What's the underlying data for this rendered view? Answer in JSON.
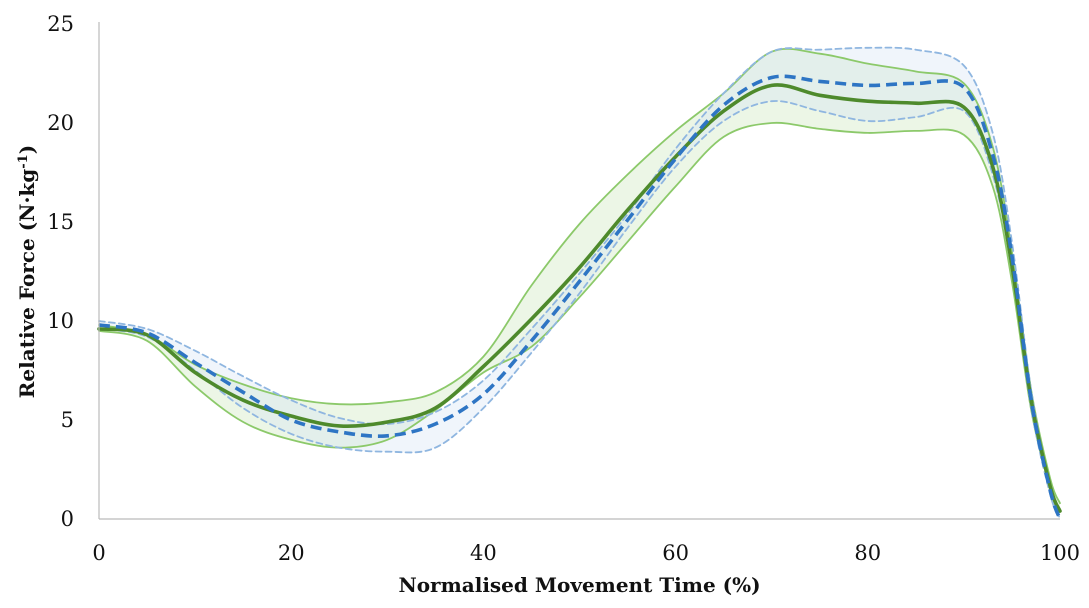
{
  "chart_data": {
    "type": "line",
    "xlabel": "Normalised Movement Time (%)",
    "ylabel_main": "Relative Force (N·kg",
    "ylabel_sup": "-1",
    "ylabel_end": ")",
    "xlim": [
      0,
      100
    ],
    "ylim": [
      0,
      25
    ],
    "xticks": [
      0,
      20,
      40,
      60,
      80,
      100
    ],
    "yticks": [
      0,
      5,
      10,
      15,
      20,
      25
    ],
    "grid": false,
    "legend": "none",
    "series": [
      {
        "role": "green-upper",
        "color": "#8cc96a",
        "style": "solid",
        "points": [
          [
            0,
            9.8
          ],
          [
            5,
            9.3
          ],
          [
            10,
            7.8
          ],
          [
            15,
            6.8
          ],
          [
            20,
            6.1
          ],
          [
            25,
            5.8
          ],
          [
            30,
            5.9
          ],
          [
            35,
            6.4
          ],
          [
            40,
            8.2
          ],
          [
            45,
            11.8
          ],
          [
            50,
            14.9
          ],
          [
            55,
            17.4
          ],
          [
            60,
            19.6
          ],
          [
            65,
            21.5
          ],
          [
            70,
            23.6
          ],
          [
            75,
            23.5
          ],
          [
            80,
            23.0
          ],
          [
            85,
            22.6
          ],
          [
            90,
            22.0
          ],
          [
            93,
            18.8
          ],
          [
            95,
            13.5
          ],
          [
            97,
            6.5
          ],
          [
            99,
            2.0
          ],
          [
            100,
            0.8
          ]
        ]
      },
      {
        "role": "green-lower",
        "color": "#8cc96a",
        "style": "solid",
        "points": [
          [
            0,
            9.5
          ],
          [
            5,
            9.0
          ],
          [
            10,
            6.7
          ],
          [
            15,
            4.9
          ],
          [
            20,
            4.0
          ],
          [
            25,
            3.6
          ],
          [
            30,
            4.0
          ],
          [
            35,
            5.5
          ],
          [
            40,
            7.4
          ],
          [
            45,
            8.7
          ],
          [
            50,
            11.2
          ],
          [
            55,
            14.0
          ],
          [
            60,
            16.8
          ],
          [
            65,
            19.3
          ],
          [
            70,
            20.0
          ],
          [
            75,
            19.7
          ],
          [
            80,
            19.5
          ],
          [
            85,
            19.6
          ],
          [
            90,
            19.4
          ],
          [
            93,
            16.8
          ],
          [
            95,
            12.0
          ],
          [
            97,
            5.5
          ],
          [
            99,
            1.5
          ],
          [
            100,
            0.5
          ]
        ]
      },
      {
        "role": "blue-upper",
        "color": "#8fb6e0",
        "style": "dashed",
        "points": [
          [
            0,
            10.0
          ],
          [
            5,
            9.6
          ],
          [
            10,
            8.5
          ],
          [
            15,
            7.2
          ],
          [
            20,
            6.0
          ],
          [
            25,
            5.1
          ],
          [
            30,
            4.8
          ],
          [
            35,
            5.4
          ],
          [
            40,
            7.0
          ],
          [
            45,
            9.6
          ],
          [
            50,
            12.4
          ],
          [
            55,
            15.4
          ],
          [
            60,
            18.7
          ],
          [
            65,
            21.5
          ],
          [
            70,
            23.6
          ],
          [
            75,
            23.7
          ],
          [
            80,
            23.8
          ],
          [
            85,
            23.7
          ],
          [
            90,
            22.9
          ],
          [
            93,
            19.5
          ],
          [
            95,
            14.0
          ],
          [
            97,
            6.5
          ],
          [
            99,
            1.5
          ],
          [
            100,
            0.0
          ]
        ]
      },
      {
        "role": "blue-lower",
        "color": "#8fb6e0",
        "style": "dashed",
        "points": [
          [
            0,
            9.6
          ],
          [
            5,
            9.2
          ],
          [
            10,
            7.5
          ],
          [
            15,
            5.6
          ],
          [
            20,
            4.3
          ],
          [
            25,
            3.6
          ],
          [
            30,
            3.4
          ],
          [
            35,
            3.6
          ],
          [
            40,
            5.6
          ],
          [
            45,
            8.4
          ],
          [
            50,
            11.4
          ],
          [
            55,
            14.7
          ],
          [
            60,
            17.8
          ],
          [
            65,
            20.1
          ],
          [
            70,
            21.1
          ],
          [
            75,
            20.6
          ],
          [
            80,
            20.1
          ],
          [
            85,
            20.3
          ],
          [
            90,
            20.6
          ],
          [
            93,
            17.4
          ],
          [
            95,
            12.6
          ],
          [
            97,
            5.6
          ],
          [
            99,
            1.2
          ],
          [
            100,
            0.0
          ]
        ]
      },
      {
        "role": "green-mean",
        "color": "#4e8a2c",
        "style": "solid",
        "points": [
          [
            0,
            9.6
          ],
          [
            5,
            9.3
          ],
          [
            10,
            7.4
          ],
          [
            15,
            6.0
          ],
          [
            20,
            5.2
          ],
          [
            25,
            4.7
          ],
          [
            30,
            4.9
          ],
          [
            35,
            5.6
          ],
          [
            40,
            7.7
          ],
          [
            45,
            10.1
          ],
          [
            50,
            12.7
          ],
          [
            55,
            15.6
          ],
          [
            60,
            18.3
          ],
          [
            65,
            20.6
          ],
          [
            70,
            21.9
          ],
          [
            75,
            21.4
          ],
          [
            80,
            21.1
          ],
          [
            85,
            21.0
          ],
          [
            90,
            20.8
          ],
          [
            93,
            17.8
          ],
          [
            95,
            12.8
          ],
          [
            97,
            6.0
          ],
          [
            99,
            1.6
          ],
          [
            100,
            0.4
          ]
        ]
      },
      {
        "role": "blue-mean",
        "color": "#2e75c4",
        "style": "dashed-bold",
        "points": [
          [
            0,
            9.8
          ],
          [
            5,
            9.4
          ],
          [
            10,
            7.9
          ],
          [
            15,
            6.4
          ],
          [
            20,
            5.0
          ],
          [
            25,
            4.4
          ],
          [
            30,
            4.2
          ],
          [
            35,
            4.8
          ],
          [
            40,
            6.3
          ],
          [
            45,
            9.0
          ],
          [
            50,
            12.0
          ],
          [
            55,
            15.1
          ],
          [
            60,
            18.2
          ],
          [
            65,
            20.9
          ],
          [
            70,
            22.3
          ],
          [
            75,
            22.1
          ],
          [
            80,
            21.9
          ],
          [
            85,
            22.0
          ],
          [
            90,
            21.8
          ],
          [
            93,
            18.4
          ],
          [
            95,
            13.3
          ],
          [
            97,
            6.0
          ],
          [
            99,
            1.4
          ],
          [
            100,
            0.0
          ]
        ]
      }
    ]
  }
}
